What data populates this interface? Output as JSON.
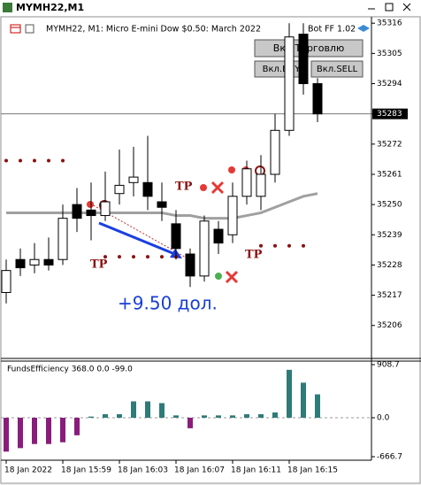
{
  "window": {
    "title": "MYMH22,M1"
  },
  "header": {
    "symbol_info": "MYMH22, M1:  Micro E-mini Dow $0.50: March 2022",
    "bot": "Bot FF 1.02"
  },
  "buttons": [
    "Вкл.Торговлю",
    "Вкл.BUY",
    "Вкл.SELL"
  ],
  "annotations": {
    "profit": "+9.50 дол.",
    "tp_labels": [
      "TP",
      "TP",
      "TP"
    ]
  },
  "chart_data": [
    {
      "type": "candlestick",
      "categories": [
        "18 Jan 2022",
        null,
        null,
        null,
        "18 Jan 15:59",
        null,
        null,
        null,
        "18 Jan 16:03",
        null,
        null,
        null,
        "18 Jan 16:07",
        null,
        null,
        null,
        "18 Jan 16:11",
        null,
        null,
        null,
        "18 Jan 16:15",
        null,
        null
      ],
      "open": [
        35218,
        35230,
        35228,
        35230,
        35230,
        35250,
        35248,
        35246,
        35254,
        35258,
        35258,
        35251,
        35243,
        35232,
        35224,
        35241,
        35239,
        35253,
        35253,
        35261,
        35277,
        35312,
        35294
      ],
      "high": [
        35230,
        35234,
        35236,
        35238,
        35250,
        35256,
        35258,
        35262,
        35270,
        35271,
        35275,
        35258,
        35248,
        35234,
        35246,
        35244,
        35258,
        35266,
        35268,
        35283,
        35316,
        35316,
        35296
      ],
      "low": [
        35214,
        35224,
        35225,
        35226,
        35228,
        35240,
        35237,
        35244,
        35250,
        35253,
        35248,
        35244,
        35230,
        35220,
        35222,
        35232,
        35236,
        35250,
        35248,
        35258,
        35275,
        35290,
        35280
      ],
      "close": [
        35226,
        35227,
        35230,
        35228,
        35245,
        35245,
        35246,
        35251,
        35257,
        35260,
        35253,
        35249,
        35234,
        35224,
        35244,
        35236,
        35253,
        35263,
        35261,
        35277,
        35311,
        35294,
        35283
      ],
      "up_color": "#ffffff",
      "down_color": "#000000",
      "series": [
        {
          "name": null,
          "kind": "line",
          "color": "#a0a0a0",
          "values": [
            35247,
            35247,
            35247,
            35247,
            35247,
            35247,
            35247,
            35247,
            35247,
            35247,
            35247,
            35247,
            35246,
            35246,
            35245,
            35245,
            35245,
            35246,
            35247,
            35249,
            35251,
            35253,
            35254
          ]
        },
        {
          "name": null,
          "kind": "dots",
          "color": "#8b1010",
          "values": [
            35266,
            35266,
            35266,
            35266,
            35266,
            null,
            null,
            null,
            null,
            null,
            null,
            null,
            null,
            null,
            null,
            null,
            null,
            null,
            null,
            null,
            null,
            null,
            null
          ]
        },
        {
          "name": null,
          "kind": "dots",
          "color": "#8b1010",
          "values": [
            null,
            null,
            null,
            null,
            null,
            null,
            null,
            35231,
            35231,
            35231,
            35231,
            35231,
            35231,
            null,
            null,
            null,
            null,
            null,
            null,
            null,
            null,
            null,
            null
          ]
        },
        {
          "name": null,
          "kind": "dots",
          "color": "#8b1010",
          "values": [
            null,
            null,
            null,
            null,
            null,
            null,
            null,
            null,
            null,
            null,
            null,
            null,
            null,
            null,
            null,
            null,
            null,
            null,
            35235,
            35235,
            35235,
            35235,
            null
          ]
        }
      ],
      "current_price": 35283,
      "ylim": [
        35194,
        35318
      ],
      "yticks": [
        35206,
        35217,
        35228,
        35239,
        35250,
        35261,
        35272,
        35283,
        35294,
        35305,
        35316
      ]
    },
    {
      "type": "bar",
      "title": "FundsEfficiency 368.0 0.0 -99.0",
      "values": [
        -580,
        -520,
        -450,
        -450,
        -420,
        -300,
        20,
        60,
        60,
        280,
        280,
        250,
        40,
        -180,
        40,
        40,
        40,
        60,
        60,
        90,
        820,
        600,
        400
      ],
      "positive_color": "#2e7b78",
      "negative_color": "#8a1c7c",
      "ylim": [
        -727,
        969
      ],
      "yticks": [
        -666.7,
        {
          "value": 0,
          "label": "0.0"
        },
        908.7
      ]
    }
  ]
}
